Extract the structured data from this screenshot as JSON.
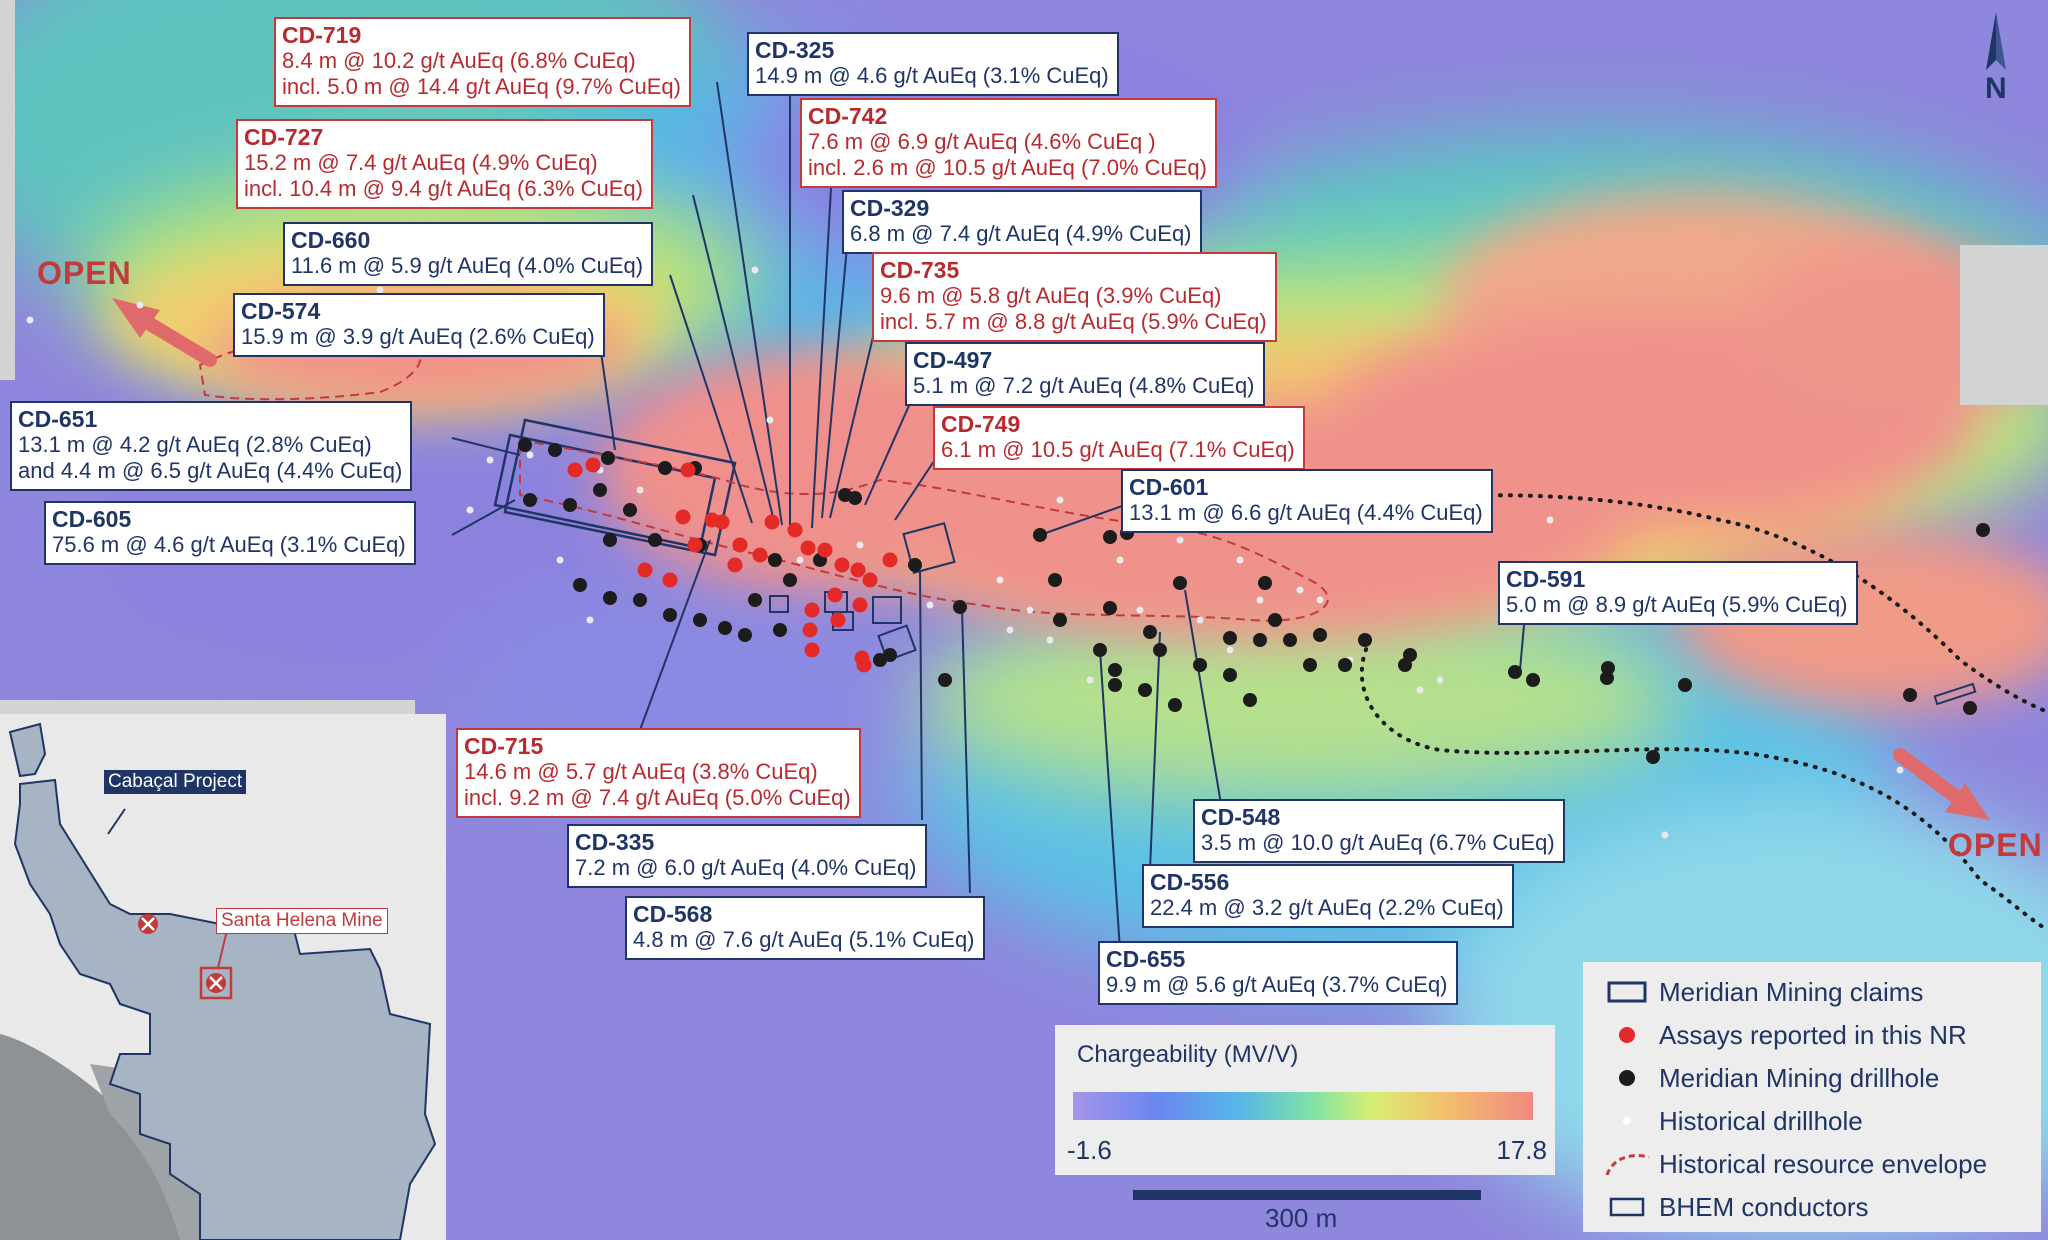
{
  "north_label": "N",
  "open_labels": [
    "OPEN",
    "OPEN"
  ],
  "callouts": [
    {
      "hole": "CD-719",
      "color": "red",
      "lines": [
        "8.4 m @ 10.2 g/t AuEq (6.8% CuEq)",
        "incl. 5.0 m @ 14.4 g/t AuEq (9.7% CuEq)"
      ]
    },
    {
      "hole": "CD-325",
      "color": "blue",
      "lines": [
        "14.9 m @ 4.6 g/t AuEq (3.1% CuEq)"
      ]
    },
    {
      "hole": "CD-742",
      "color": "red",
      "lines": [
        "7.6 m @ 6.9 g/t AuEq (4.6% CuEq )",
        "incl. 2.6 m @ 10.5 g/t AuEq (7.0% CuEq)"
      ]
    },
    {
      "hole": "CD-727",
      "color": "red",
      "lines": [
        "15.2 m @ 7.4 g/t AuEq (4.9% CuEq)",
        "incl. 10.4 m @ 9.4 g/t AuEq (6.3% CuEq)"
      ]
    },
    {
      "hole": "CD-329",
      "color": "blue",
      "lines": [
        "6.8 m @ 7.4 g/t AuEq (4.9% CuEq)"
      ]
    },
    {
      "hole": "CD-660",
      "color": "blue",
      "lines": [
        "11.6 m @ 5.9 g/t AuEq (4.0% CuEq)"
      ]
    },
    {
      "hole": "CD-735",
      "color": "red",
      "lines": [
        "9.6 m @ 5.8 g/t AuEq (3.9% CuEq)",
        "incl. 5.7 m @ 8.8 g/t AuEq (5.9% CuEq)"
      ]
    },
    {
      "hole": "CD-574",
      "color": "blue",
      "lines": [
        "15.9 m @ 3.9 g/t AuEq (2.6% CuEq)"
      ]
    },
    {
      "hole": "CD-497",
      "color": "blue",
      "lines": [
        "5.1 m @ 7.2 g/t AuEq (4.8% CuEq)"
      ]
    },
    {
      "hole": "CD-651",
      "color": "blue",
      "lines": [
        "13.1 m @ 4.2 g/t AuEq (2.8% CuEq)",
        "and 4.4 m @ 6.5 g/t AuEq (4.4% CuEq)"
      ]
    },
    {
      "hole": "CD-749",
      "color": "red",
      "lines": [
        "6.1 m @ 10.5 g/t AuEq (7.1% CuEq)"
      ]
    },
    {
      "hole": "CD-601",
      "color": "blue",
      "lines": [
        "13.1 m @ 6.6 g/t AuEq (4.4% CuEq)"
      ]
    },
    {
      "hole": "CD-605",
      "color": "blue",
      "lines": [
        "75.6 m @ 4.6 g/t AuEq (3.1% CuEq)"
      ]
    },
    {
      "hole": "CD-591",
      "color": "blue",
      "lines": [
        "5.0 m @ 8.9 g/t AuEq (5.9% CuEq)"
      ]
    },
    {
      "hole": "CD-715",
      "color": "red",
      "lines": [
        "14.6 m @ 5.7 g/t AuEq (3.8% CuEq)",
        "incl. 9.2 m @ 7.4 g/t AuEq (5.0% CuEq)"
      ]
    },
    {
      "hole": "CD-548",
      "color": "blue",
      "lines": [
        "3.5 m @ 10.0 g/t AuEq (6.7% CuEq)"
      ]
    },
    {
      "hole": "CD-335",
      "color": "blue",
      "lines": [
        "7.2 m @ 6.0 g/t AuEq (4.0% CuEq)"
      ]
    },
    {
      "hole": "CD-556",
      "color": "blue",
      "lines": [
        "22.4 m @ 3.2 g/t AuEq (2.2% CuEq)"
      ]
    },
    {
      "hole": "CD-568",
      "color": "blue",
      "lines": [
        "4.8 m @ 7.6 g/t AuEq (5.1% CuEq)"
      ]
    },
    {
      "hole": "CD-655",
      "color": "blue",
      "lines": [
        "9.9 m @ 5.6 g/t AuEq (3.7% CuEq)"
      ]
    }
  ],
  "legend": {
    "items": [
      {
        "label": "Meridian Mining claims",
        "symbol": "claims-box"
      },
      {
        "label": "Assays reported in this NR",
        "symbol": "red-dot"
      },
      {
        "label": "Meridian Mining drillhole",
        "symbol": "black-dot"
      },
      {
        "label": "Historical drillhole",
        "symbol": "white-dot"
      },
      {
        "label": "Historical resource envelope",
        "symbol": "red-dashed-outline"
      },
      {
        "label": "BHEM conductors",
        "symbol": "blue-box"
      }
    ]
  },
  "chargeability": {
    "title": "Chargeability (MV/V)",
    "min": "-1.6",
    "max": "17.8"
  },
  "scale_bar": {
    "label": "300 m"
  },
  "inset": {
    "project_label": "Cabaçal Project",
    "mine_label": "Santa Helena Mine"
  },
  "colors": {
    "label_blue": "#1f3566",
    "label_red": "#c33a3d",
    "assay_red": "#e32a26",
    "drillhole_black": "#202020"
  }
}
